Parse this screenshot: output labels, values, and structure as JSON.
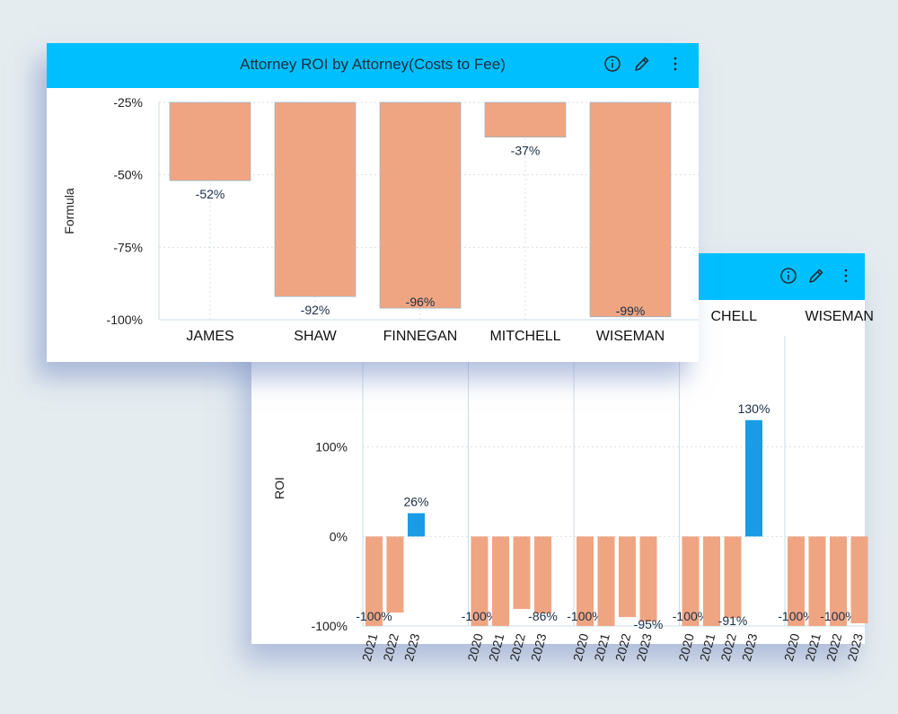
{
  "colors": {
    "header": "#00bfff",
    "bar_negative": "#f0a582",
    "bar_positive": "#1a9be6",
    "grid": "#d9e1ea",
    "axis": "#c9dcea"
  },
  "icons": [
    "info-icon",
    "pencil-icon",
    "kebab-menu-icon"
  ],
  "chart_data": [
    {
      "type": "bar",
      "title": "Attorney ROI by Attorney(Costs to Fee)",
      "xlabel": "",
      "ylabel": "Formula",
      "ylim": [
        -100,
        -25
      ],
      "yticks": [
        "-25%",
        "-50%",
        "-75%",
        "-100%"
      ],
      "categories": [
        "JAMES",
        "SHAW",
        "FINNEGAN",
        "MITCHELL",
        "WISEMAN"
      ],
      "values": [
        -52,
        -92,
        -96,
        -37,
        -99
      ],
      "data_labels": [
        "-52%",
        "-92%",
        "-96%",
        "-37%",
        "-99%"
      ],
      "grid": true
    },
    {
      "type": "bar",
      "title": "",
      "xlabel": "",
      "ylabel": "ROI",
      "ylim": [
        -100,
        200
      ],
      "yticks": [
        "100%",
        "0%",
        "-100%"
      ],
      "groups": [
        {
          "name": "",
          "years": [
            "2021",
            "2022",
            "2023"
          ],
          "values": [
            -100,
            -85,
            26
          ],
          "labels": [
            "-100%",
            "",
            "26%"
          ]
        },
        {
          "name": "",
          "years": [
            "2020",
            "2021",
            "2022",
            "2023"
          ],
          "values": [
            -100,
            -100,
            -81,
            -86
          ],
          "labels": [
            "-100%",
            "",
            "",
            "-86%"
          ]
        },
        {
          "name": "",
          "years": [
            "2020",
            "2021",
            "2022",
            "2023"
          ],
          "values": [
            -100,
            -100,
            -90,
            -95
          ],
          "labels": [
            "-100%",
            "",
            "",
            "-95%"
          ]
        },
        {
          "name": "CHELL",
          "years": [
            "2020",
            "2021",
            "2022",
            "2023"
          ],
          "values": [
            -100,
            -100,
            -91,
            130
          ],
          "labels": [
            "-100%",
            "",
            "-91%",
            "130%"
          ]
        },
        {
          "name": "WISEMAN",
          "years": [
            "2020",
            "2021",
            "2022",
            "2023"
          ],
          "values": [
            -100,
            -100,
            -100,
            -97
          ],
          "labels": [
            "-100%",
            "",
            "-100%",
            ""
          ]
        }
      ],
      "grid": true
    }
  ]
}
